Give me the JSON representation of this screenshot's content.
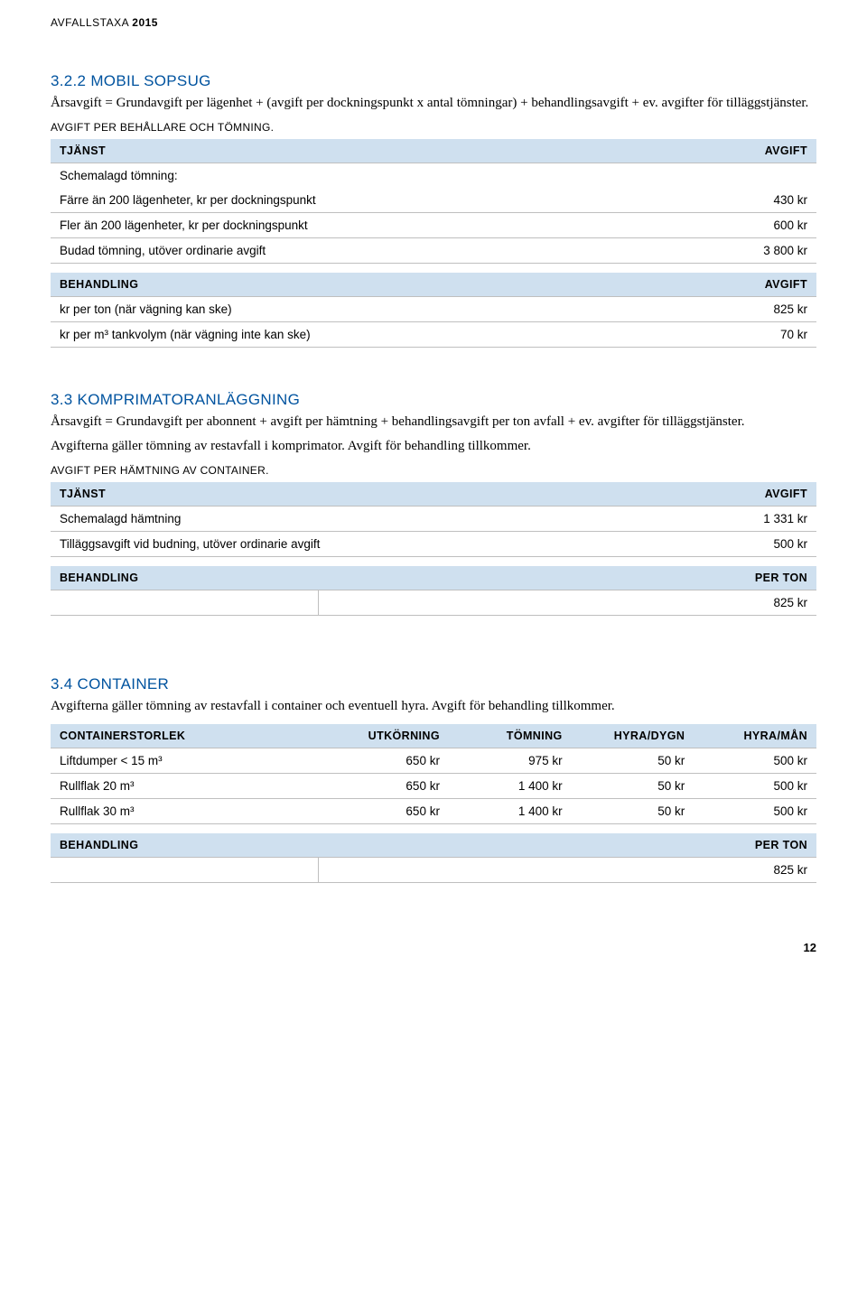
{
  "header": {
    "prefix": "AVFALLSTAXA ",
    "year": "2015"
  },
  "s322": {
    "title": "3.2.2  MOBIL SOPSUG",
    "p1": "Årsavgift = Grundavgift per lägenhet + (avgift per dockningspunkt x antal tömningar) + behandlingsavgift + ev. avgifter för tilläggstjänster.",
    "sub": "AVGIFT PER BEHÅLLARE OCH TÖMNING.",
    "t1": {
      "h1": "TJÄNST",
      "h2": "AVGIFT",
      "r0": "Schemalagd tömning:",
      "r1a": "Färre än 200 lägenheter, kr per dockningspunkt",
      "r1b": "430 kr",
      "r2a": "Fler än 200 lägenheter, kr per dockningspunkt",
      "r2b": "600 kr",
      "r3a": "Budad tömning, utöver ordinarie avgift",
      "r3b": "3 800 kr"
    },
    "t2": {
      "h1": "BEHANDLING",
      "h2": "AVGIFT",
      "r1a": "kr per ton (när vägning kan ske)",
      "r1b": "825 kr",
      "r2a": "kr per m³ tankvolym (när vägning inte kan ske)",
      "r2b": "70 kr"
    }
  },
  "s33": {
    "title": "3.3  KOMPRIMATORANLÄGGNING",
    "p1": "Årsavgift = Grundavgift per abonnent + avgift per hämtning + behandlingsavgift per ton avfall + ev. avgifter för tilläggstjänster.",
    "p2": "Avgifterna gäller tömning av restavfall i komprimator. Avgift för behandling tillkommer.",
    "sub": "AVGIFT PER HÄMTNING AV CONTAINER.",
    "t1": {
      "h1": "TJÄNST",
      "h2": "AVGIFT",
      "r1a": "Schemalagd hämtning",
      "r1b": "1 331 kr",
      "r2a": "Tilläggsavgift vid budning, utöver ordinarie avgift",
      "r2b": "500 kr"
    },
    "t2": {
      "h1": "BEHANDLING",
      "h2": "PER TON",
      "r1b": "825 kr"
    }
  },
  "s34": {
    "title": "3.4  CONTAINER",
    "p1": "Avgifterna gäller tömning av restavfall i container och eventuell hyra. Avgift för behandling tillkommer.",
    "t1": {
      "h1": "CONTAINERSTORLEK",
      "h2": "UTKÖRNING",
      "h3": "TÖMNING",
      "h4": "HYRA/DYGN",
      "h5": "HYRA/MÅN",
      "r1": {
        "a": "Liftdumper < 15 m³",
        "b": "650 kr",
        "c": "975 kr",
        "d": "50 kr",
        "e": "500 kr"
      },
      "r2": {
        "a": "Rullflak 20 m³",
        "b": "650 kr",
        "c": "1 400 kr",
        "d": "50 kr",
        "e": "500 kr"
      },
      "r3": {
        "a": "Rullflak 30 m³",
        "b": "650 kr",
        "c": "1 400 kr",
        "d": "50 kr",
        "e": "500 kr"
      }
    },
    "t2": {
      "h1": "BEHANDLING",
      "h2": "PER TON",
      "r1b": "825 kr"
    }
  },
  "page_number": "12"
}
